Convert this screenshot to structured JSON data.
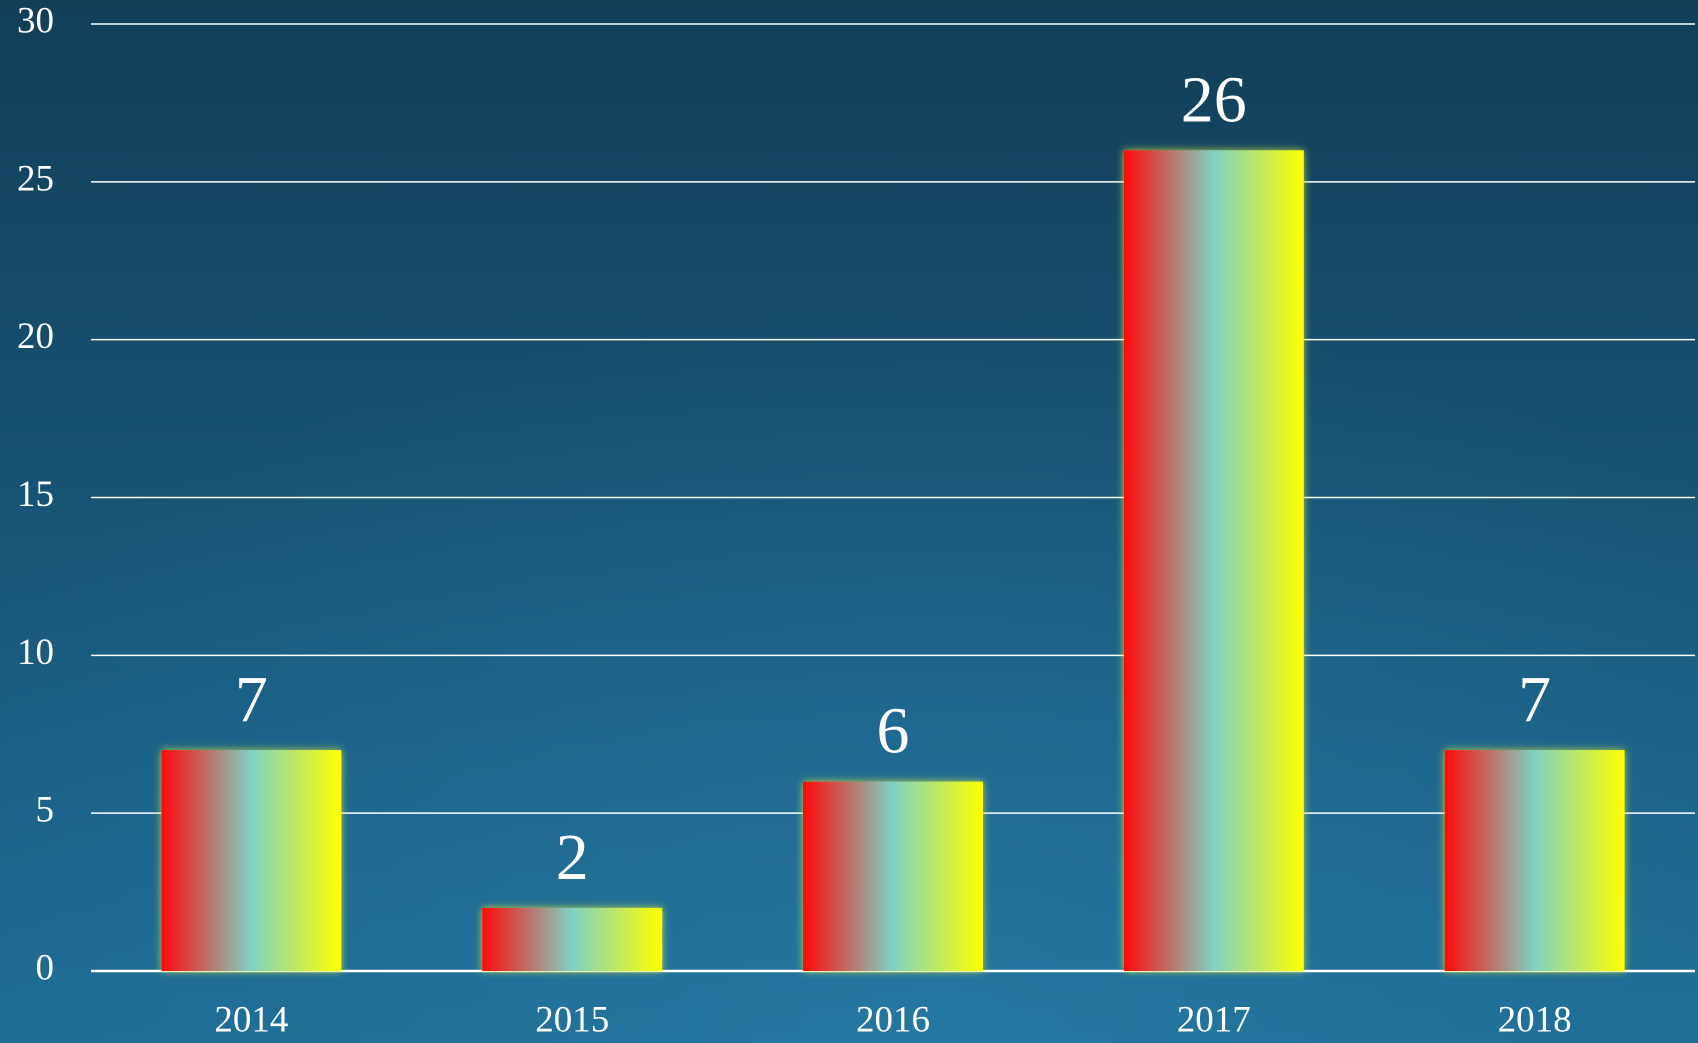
{
  "chart_data": {
    "type": "bar",
    "categories": [
      "2014",
      "2015",
      "2016",
      "2017",
      "2018"
    ],
    "values": [
      7,
      2,
      6,
      26,
      7
    ],
    "gradient_colors": [
      "#ff0a0a",
      "#7fd2c4",
      "#ffff00"
    ],
    "ylim": [
      0,
      30
    ],
    "yticks": [
      0,
      5,
      10,
      15,
      20,
      25,
      30
    ],
    "grid": true
  }
}
